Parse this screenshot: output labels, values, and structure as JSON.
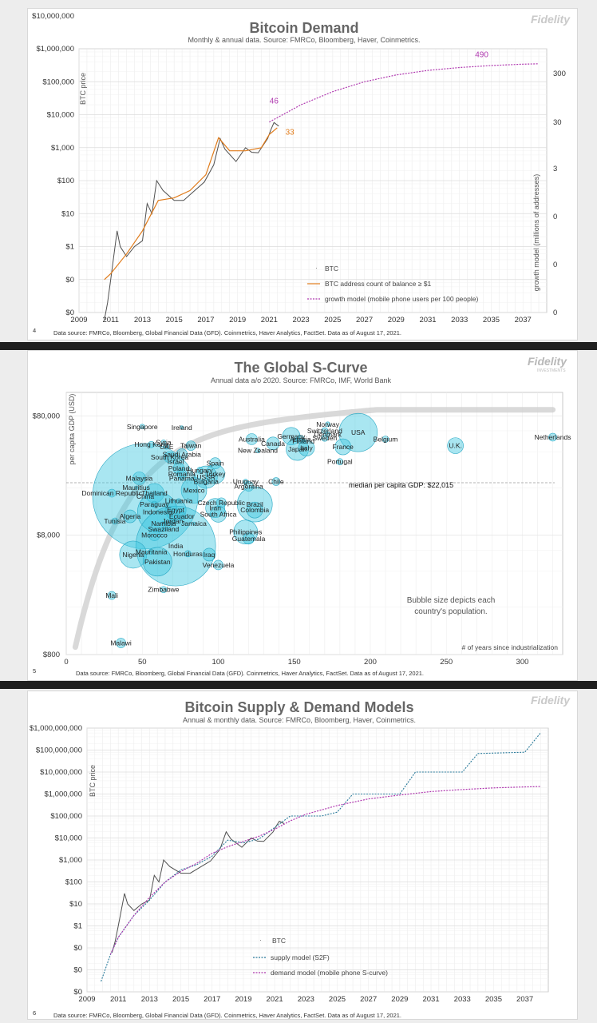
{
  "colors": {
    "btc": "#505050",
    "addr": "#e07b1a",
    "growth": "#b03ab0",
    "s2f": "#2a7a9a",
    "bubble": "#40c8e0"
  },
  "chart_data": [
    {
      "type": "line",
      "title": "Bitcoin Demand",
      "subtitle": "Monthly & annual data.  Source: FMRCo, Bloomberg, Haver, Coinmetrics.",
      "ylabel": "BTC price",
      "y2label": "growth model (millions of addresses)",
      "y_ticks": [
        "$0",
        "$0",
        "$1",
        "$10",
        "$100",
        "$1,000",
        "$10,000",
        "$100,000",
        "$1,000,000",
        "$10,000,000"
      ],
      "y2_ticks": [
        "0",
        "0",
        "0",
        "3",
        "30",
        "300"
      ],
      "x_ticks": [
        "2009",
        "2011",
        "2013",
        "2015",
        "2017",
        "2019",
        "2021",
        "2023",
        "2025",
        "2027",
        "2029",
        "2031",
        "2033",
        "2035",
        "2037"
      ],
      "annotations": [
        "46",
        "33",
        "490"
      ],
      "legend": [
        "BTC",
        "BTC address count of balance ≥ $1",
        "growth model (mobile phone users per 100 people)"
      ],
      "series": [
        {
          "name": "BTC",
          "x": [
            2010.6,
            2010.8,
            2011.0,
            2011.4,
            2011.6,
            2012.0,
            2012.5,
            2013.0,
            2013.3,
            2013.6,
            2013.9,
            2014.3,
            2015.0,
            2015.6,
            2016.3,
            2016.9,
            2017.5,
            2017.9,
            2018.2,
            2018.9,
            2019.5,
            2019.9,
            2020.3,
            2020.9,
            2021.1,
            2021.3,
            2021.6
          ],
          "y": [
            0.06,
            0.2,
            1,
            30,
            10,
            5,
            10,
            15,
            200,
            100,
            1000,
            500,
            250,
            250,
            500,
            900,
            3000,
            19000,
            9000,
            3800,
            10000,
            7200,
            7000,
            19000,
            35000,
            58000,
            45000
          ]
        },
        {
          "name": "BTC address count of balance ≥ $1",
          "x": [
            2010.6,
            2011.0,
            2012.0,
            2013.0,
            2014.0,
            2015.0,
            2016.0,
            2017.0,
            2017.8,
            2018.5,
            2019.5,
            2020.5,
            2021.0,
            2021.5
          ],
          "y": [
            1,
            1.5,
            6,
            30,
            250,
            300,
            500,
            1500,
            20000,
            8000,
            8000,
            10000,
            25000,
            40000
          ]
        },
        {
          "name": "growth model (mobile phone users per 100 people)",
          "x": [
            2021.0,
            2023,
            2025,
            2027,
            2029,
            2031,
            2033,
            2035,
            2037,
            2038
          ],
          "y": [
            60000,
            200000,
            500000,
            1000000,
            1600000,
            2200000,
            2700000,
            3100000,
            3400000,
            3500000
          ]
        }
      ]
    },
    {
      "type": "scatter",
      "title": "The Global S-Curve",
      "subtitle": "Annual data a/o 2020.  Source: FMRCo, IMF, World Bank",
      "xlabel": "# of years since industrialization",
      "ylabel": "per capita GDP (USD)",
      "y_ticks": [
        "$800",
        "$8,000",
        "$80,000"
      ],
      "x_ticks": [
        "0",
        "50",
        "100",
        "150",
        "200",
        "250",
        "300"
      ],
      "median_label": "median per capita GDP: $22,015",
      "note": "Bubble size depicts each country's population.",
      "points": [
        {
          "label": "Singapore",
          "x": 50,
          "y": 65000,
          "r": 3
        },
        {
          "label": "Ireland",
          "x": 76,
          "y": 64000,
          "r": 2
        },
        {
          "label": "Hong Kong",
          "x": 56,
          "y": 46000,
          "r": 4
        },
        {
          "label": "Syria",
          "x": 64,
          "y": 48000,
          "r": 3
        },
        {
          "label": "UAE",
          "x": 66,
          "y": 44000,
          "r": 3
        },
        {
          "label": "Taiwan",
          "x": 82,
          "y": 45000,
          "r": 6
        },
        {
          "label": "Saudi Arabia",
          "x": 76,
          "y": 38000,
          "r": 7
        },
        {
          "label": "South Korea",
          "x": 68,
          "y": 36000,
          "r": 7
        },
        {
          "label": "Israel",
          "x": 72,
          "y": 33000,
          "r": 3
        },
        {
          "label": "Spain",
          "x": 98,
          "y": 32000,
          "r": 7
        },
        {
          "label": "Poland",
          "x": 74,
          "y": 29000,
          "r": 7
        },
        {
          "label": "Hungary",
          "x": 88,
          "y": 28000,
          "r": 4
        },
        {
          "label": "Romania",
          "x": 76,
          "y": 26000,
          "r": 6
        },
        {
          "label": "Turkey",
          "x": 98,
          "y": 26000,
          "r": 12
        },
        {
          "label": "Malaysia",
          "x": 48,
          "y": 24000,
          "r": 8
        },
        {
          "label": "Panama",
          "x": 76,
          "y": 24000,
          "r": 3
        },
        {
          "label": "USSR",
          "x": 92,
          "y": 24500,
          "r": 14
        },
        {
          "label": "Bulgaria",
          "x": 92,
          "y": 22500,
          "r": 4
        },
        {
          "label": "Mauritius",
          "x": 46,
          "y": 20000,
          "r": 2
        },
        {
          "label": "Dominican Republic",
          "x": 30,
          "y": 18000,
          "r": 5
        },
        {
          "label": "Thailand",
          "x": 58,
          "y": 18000,
          "r": 12
        },
        {
          "label": "Mexico",
          "x": 84,
          "y": 19000,
          "r": 16
        },
        {
          "label": "China",
          "x": 52,
          "y": 17000,
          "r": 66
        },
        {
          "label": "Lithuania",
          "x": 74,
          "y": 15500,
          "r": 3
        },
        {
          "label": "Paraguay",
          "x": 58,
          "y": 14500,
          "r": 4
        },
        {
          "label": "Czech Republic",
          "x": 102,
          "y": 15000,
          "r": 6
        },
        {
          "label": "Iran",
          "x": 98,
          "y": 13500,
          "r": 12
        },
        {
          "label": "Egypt",
          "x": 72,
          "y": 13000,
          "r": 13
        },
        {
          "label": "Indonesia",
          "x": 60,
          "y": 12500,
          "r": 25
        },
        {
          "label": "Algeria",
          "x": 42,
          "y": 11500,
          "r": 8
        },
        {
          "label": "Ecuador",
          "x": 76,
          "y": 11500,
          "r": 5
        },
        {
          "label": "South Africa",
          "x": 100,
          "y": 12000,
          "r": 10
        },
        {
          "label": "Tunisia",
          "x": 32,
          "y": 10500,
          "r": 4
        },
        {
          "label": "Jordan",
          "x": 70,
          "y": 10500,
          "r": 4
        },
        {
          "label": "Namibia",
          "x": 64,
          "y": 10000,
          "r": 3
        },
        {
          "label": "Jamaica",
          "x": 84,
          "y": 10000,
          "r": 2
        },
        {
          "label": "Swaziland",
          "x": 64,
          "y": 9000,
          "r": 2
        },
        {
          "label": "Morocco",
          "x": 58,
          "y": 8000,
          "r": 7
        },
        {
          "label": "India",
          "x": 72,
          "y": 6500,
          "r": 50
        },
        {
          "label": "Mauritania",
          "x": 56,
          "y": 5800,
          "r": 3
        },
        {
          "label": "Honduras",
          "x": 80,
          "y": 5600,
          "r": 4
        },
        {
          "label": "Nigeria",
          "x": 44,
          "y": 5500,
          "r": 17
        },
        {
          "label": "Pakistan",
          "x": 60,
          "y": 4800,
          "r": 18
        },
        {
          "label": "Iraq",
          "x": 94,
          "y": 5500,
          "r": 8
        },
        {
          "label": "Venezuela",
          "x": 100,
          "y": 4500,
          "r": 6
        },
        {
          "label": "Zimbabwe",
          "x": 64,
          "y": 2800,
          "r": 4
        },
        {
          "label": "Mali",
          "x": 30,
          "y": 2500,
          "r": 5
        },
        {
          "label": "Malawi",
          "x": 36,
          "y": 1000,
          "r": 6
        },
        {
          "label": "Australia",
          "x": 122,
          "y": 51000,
          "r": 7
        },
        {
          "label": "Canada",
          "x": 136,
          "y": 47000,
          "r": 8
        },
        {
          "label": "New Zealand",
          "x": 126,
          "y": 41000,
          "r": 3
        },
        {
          "label": "Germany",
          "x": 148,
          "y": 54000,
          "r": 11
        },
        {
          "label": "Austria",
          "x": 154,
          "y": 51000,
          "r": 5
        },
        {
          "label": "Norway",
          "x": 172,
          "y": 68000,
          "r": 3
        },
        {
          "label": "Switzerland",
          "x": 170,
          "y": 60000,
          "r": 4
        },
        {
          "label": "Denmark",
          "x": 172,
          "y": 56000,
          "r": 3
        },
        {
          "label": "Finland",
          "x": 156,
          "y": 49000,
          "r": 3
        },
        {
          "label": "Sweden",
          "x": 170,
          "y": 52000,
          "r": 4
        },
        {
          "label": "Japan",
          "x": 152,
          "y": 42000,
          "r": 14
        },
        {
          "label": "Italy",
          "x": 158,
          "y": 43000,
          "r": 10
        },
        {
          "label": "USA",
          "x": 192,
          "y": 58000,
          "r": 24
        },
        {
          "label": "Belgium",
          "x": 210,
          "y": 51000,
          "r": 4
        },
        {
          "label": "France",
          "x": 182,
          "y": 44000,
          "r": 10
        },
        {
          "label": "Portugal",
          "x": 180,
          "y": 33000,
          "r": 4
        },
        {
          "label": "U.K.",
          "x": 256,
          "y": 45000,
          "r": 10
        },
        {
          "label": "Netherlands",
          "x": 320,
          "y": 53000,
          "r": 5
        },
        {
          "label": "Uruguay",
          "x": 118,
          "y": 22500,
          "r": 3
        },
        {
          "label": "Argentina",
          "x": 120,
          "y": 20500,
          "r": 6
        },
        {
          "label": "Chile",
          "x": 138,
          "y": 22500,
          "r": 5
        },
        {
          "label": "Brazil",
          "x": 124,
          "y": 14500,
          "r": 22
        },
        {
          "label": "Colombia",
          "x": 124,
          "y": 13000,
          "r": 10
        },
        {
          "label": "Philippines",
          "x": 118,
          "y": 8500,
          "r": 15
        },
        {
          "label": "Guatemala",
          "x": 120,
          "y": 7500,
          "r": 7
        }
      ]
    },
    {
      "type": "line",
      "title": "Bitcoin Supply & Demand Models",
      "subtitle": "Annual & monthly data.  Source: FMRCo, Bloomberg, Haver, Coinmetrics.",
      "ylabel": "BTC price",
      "y_ticks": [
        "$0",
        "$0",
        "$0",
        "$1",
        "$10",
        "$100",
        "$1,000",
        "$10,000",
        "$100,000",
        "$1,000,000",
        "$10,000,000",
        "$100,000,000",
        "$1,000,000,000"
      ],
      "x_ticks": [
        "2009",
        "2011",
        "2013",
        "2015",
        "2017",
        "2019",
        "2021",
        "2023",
        "2025",
        "2027",
        "2029",
        "2031",
        "2033",
        "2035",
        "2037"
      ],
      "legend": [
        "BTC",
        "supply model (S2F)",
        "demand model (mobile phone S-curve)"
      ],
      "series": [
        {
          "name": "BTC",
          "x": [
            2010.6,
            2010.8,
            2011.0,
            2011.4,
            2011.6,
            2012.0,
            2012.5,
            2013.0,
            2013.3,
            2013.6,
            2013.9,
            2014.3,
            2015.0,
            2015.6,
            2016.3,
            2016.9,
            2017.5,
            2017.9,
            2018.2,
            2018.9,
            2019.5,
            2019.9,
            2020.3,
            2020.9,
            2021.1,
            2021.3,
            2021.6
          ],
          "y": [
            0.06,
            0.2,
            1,
            30,
            10,
            5,
            10,
            15,
            200,
            100,
            1000,
            500,
            250,
            250,
            500,
            900,
            3000,
            19000,
            9000,
            3800,
            10000,
            7200,
            7000,
            19000,
            35000,
            58000,
            45000
          ]
        },
        {
          "name": "supply model (S2F)",
          "x": [
            2009.9,
            2010.5,
            2011,
            2012,
            2013,
            2014,
            2015,
            2016,
            2017,
            2018,
            2019,
            2020,
            2021,
            2022,
            2024,
            2025,
            2026,
            2029,
            2030,
            2033,
            2034,
            2037,
            2038
          ],
          "y": [
            0.003,
            0.05,
            0.3,
            3,
            15,
            100,
            350,
            600,
            1500,
            8000,
            6000,
            9000,
            30000,
            100000,
            100000,
            150000,
            1000000,
            1000000,
            10000000,
            10000000,
            70000000,
            80000000,
            600000000
          ]
        },
        {
          "name": "demand model (mobile phone S-curve)",
          "x": [
            2010.5,
            2011,
            2012,
            2013,
            2014,
            2015,
            2016,
            2017,
            2018,
            2019,
            2020,
            2021,
            2022,
            2023,
            2025,
            2027,
            2029,
            2031,
            2033,
            2035,
            2037,
            2038
          ],
          "y": [
            0.05,
            0.3,
            3,
            20,
            100,
            300,
            700,
            2000,
            4000,
            7000,
            12000,
            25000,
            60000,
            120000,
            300000,
            600000,
            900000,
            1300000,
            1600000,
            1900000,
            2100000,
            2200000
          ]
        }
      ]
    }
  ],
  "footer": {
    "p1_num": "4",
    "p2_num": "5",
    "p3_num": "6",
    "source": "Data source: FMRCo, Bloomberg, Global Financial Data (GFD). Coinmetrics, Haver Analytics, FactSet.  Data as of August 17, 2021."
  },
  "brand": {
    "logo_text": "Fidelity",
    "logo_sub": "INVESTMENTS"
  }
}
